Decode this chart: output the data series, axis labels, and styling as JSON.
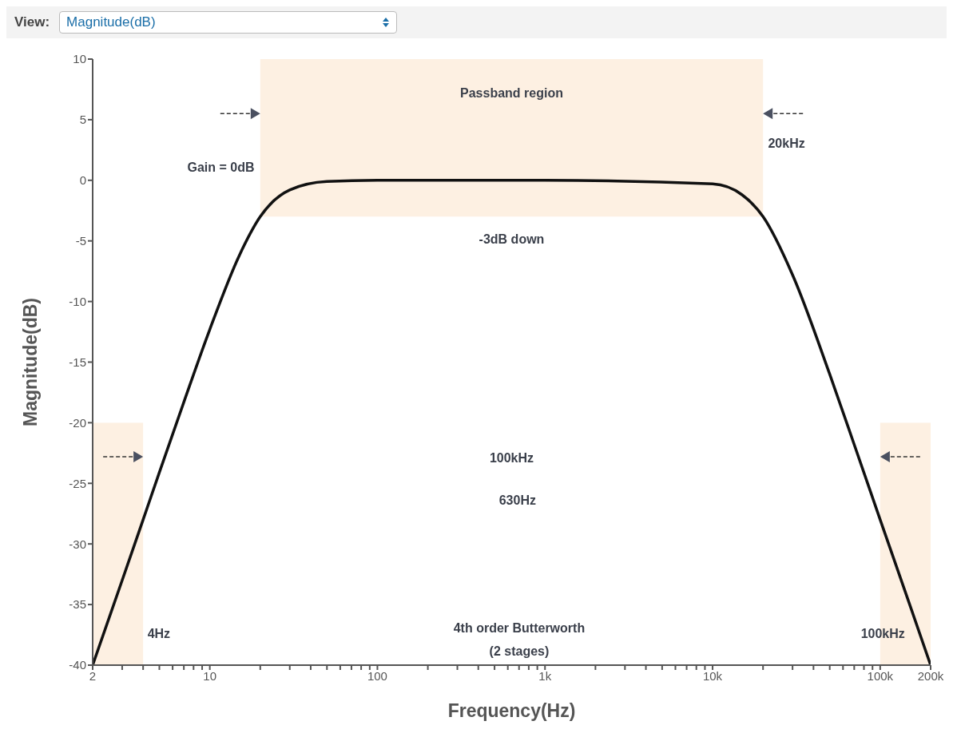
{
  "chart_data": {
    "type": "line",
    "xlabel": "Frequency(Hz)",
    "ylabel": "Magnitude(dB)",
    "log": "x",
    "marker": "none",
    "line_style": "solid",
    "x": [
      2,
      3,
      4,
      5,
      7,
      10,
      15,
      20,
      30,
      50,
      100,
      1000,
      10000,
      15000,
      20000,
      30000,
      50000,
      70000,
      100000,
      150000,
      200000
    ],
    "series": [
      {
        "color": "#111111",
        "values": [
          -40,
          -33,
          -28,
          -24.1,
          -18.3,
          -12.3,
          -6.2,
          -3,
          -0.8,
          -0.1,
          0,
          0,
          -0.3,
          -1.2,
          -3,
          -7.8,
          -16,
          -21.8,
          -28,
          -35,
          -40
        ]
      }
    ],
    "xlim": [
      2,
      200000
    ],
    "xticks": [
      2,
      {
        "value": 3,
        "label": null
      },
      {
        "value": 4,
        "label": null
      },
      {
        "value": 5,
        "label": null
      },
      {
        "value": 6,
        "label": null
      },
      {
        "value": 7,
        "label": null
      },
      {
        "value": 8,
        "label": null
      },
      {
        "value": 9,
        "label": null
      },
      10,
      {
        "value": 20,
        "label": null
      },
      {
        "value": 30,
        "label": null
      },
      {
        "value": 40,
        "label": null
      },
      {
        "value": 50,
        "label": null
      },
      {
        "value": 60,
        "label": null
      },
      {
        "value": 70,
        "label": null
      },
      {
        "value": 80,
        "label": null
      },
      {
        "value": 90,
        "label": null
      },
      100,
      {
        "value": 200,
        "label": null
      },
      {
        "value": 300,
        "label": null
      },
      {
        "value": 400,
        "label": null
      },
      {
        "value": 500,
        "label": null
      },
      {
        "value": 600,
        "label": null
      },
      {
        "value": 700,
        "label": null
      },
      {
        "value": 800,
        "label": null
      },
      {
        "value": 900,
        "label": null
      },
      {
        "value": 1000,
        "label": "1k"
      },
      {
        "value": 2000,
        "label": null
      },
      {
        "value": 3000,
        "label": null
      },
      {
        "value": 4000,
        "label": null
      },
      {
        "value": 5000,
        "label": null
      },
      {
        "value": 6000,
        "label": null
      },
      {
        "value": 7000,
        "label": null
      },
      {
        "value": 8000,
        "label": null
      },
      {
        "value": 9000,
        "label": null
      },
      {
        "value": 10000,
        "label": "10k"
      },
      {
        "value": 20000,
        "label": null
      },
      {
        "value": 30000,
        "label": null
      },
      {
        "value": 40000,
        "label": null
      },
      {
        "value": 50000,
        "label": null
      },
      {
        "value": 60000,
        "label": null
      },
      {
        "value": 70000,
        "label": null
      },
      {
        "value": 80000,
        "label": null
      },
      {
        "value": 90000,
        "label": null
      },
      {
        "value": 100000,
        "label": "100k"
      },
      {
        "value": 200000,
        "label": "200k"
      }
    ],
    "ylim": [
      -40,
      10
    ],
    "yticks": [
      10,
      5,
      0,
      -5,
      -10,
      -15,
      -20,
      -25,
      -30,
      -35,
      -40
    ],
    "bands": [
      {
        "axis": "x",
        "from": 20,
        "to": 20000,
        "color": "#fdf0e2"
      },
      {
        "axis": "x",
        "from": 2,
        "to": 4,
        "color": "#fdf0e2"
      },
      {
        "axis": "x",
        "from": 100000,
        "to": 200000,
        "color": "#fdf0e2"
      }
    ],
    "annotations": [
      "View:",
      "Magnitude(dB)",
      "Passband region",
      "Gain = 0dB",
      "20kHz",
      "-3dB down",
      "100kHz",
      "630Hz",
      "4Hz",
      "4th order Butterworth\n(2 stages)",
      "100kHz"
    ]
  }
}
